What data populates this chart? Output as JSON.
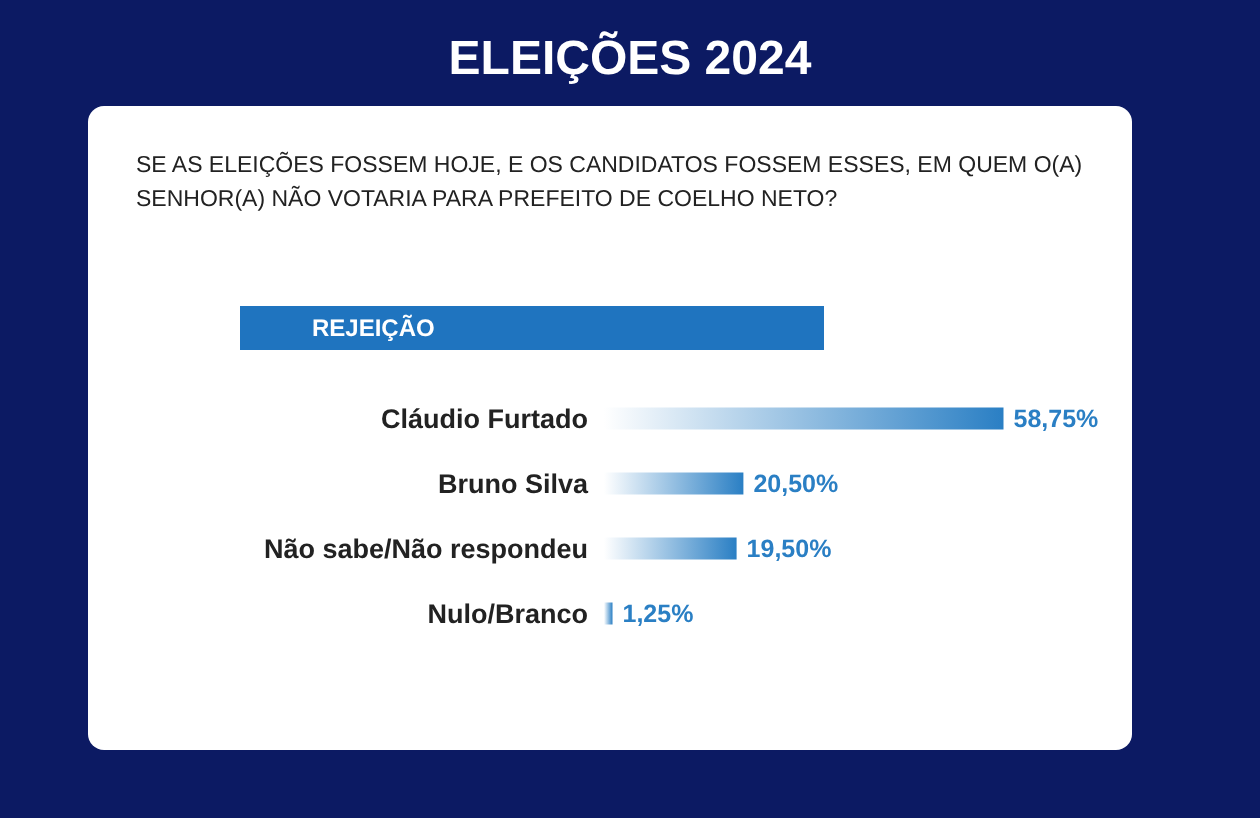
{
  "chart_data": {
    "type": "bar",
    "orientation": "horizontal",
    "title": "ELEIÇÕES 2024",
    "subtitle": "SE AS ELEIÇÕES FOSSEM HOJE, E OS CANDIDATOS FOSSEM ESSES, EM QUEM O(A) SENHOR(A) NÃO VOTARIA PARA PREFEITO DE COELHO NETO?",
    "annotations": [
      "REJEIÇÃO"
    ],
    "categories": [
      "Cláudio Furtado",
      "Bruno Silva",
      "Não sabe/Não respondeu",
      "Nulo/Branco"
    ],
    "values": [
      58.75,
      20.5,
      19.5,
      1.25
    ],
    "value_labels": [
      "58,75%",
      "20,50%",
      "19,50%",
      "1,25%"
    ],
    "color": "#2a7fc4"
  }
}
